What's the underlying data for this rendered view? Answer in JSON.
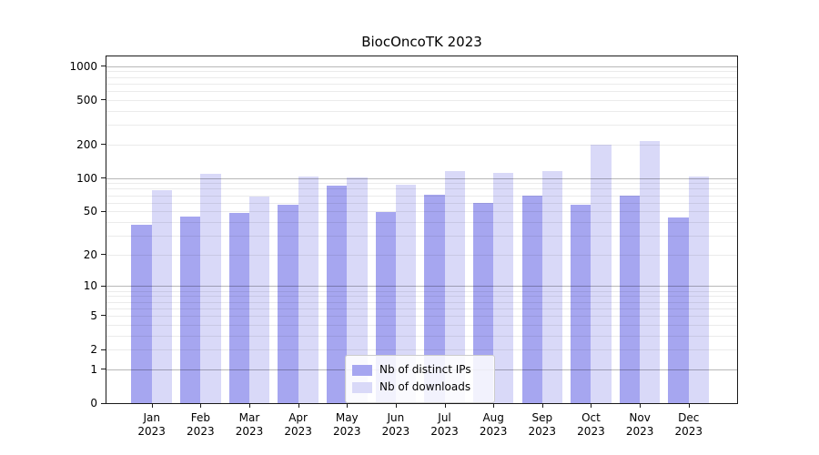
{
  "title": "BiocOncoTK 2023",
  "legend": {
    "items": [
      {
        "label": "Nb of distinct IPs",
        "color": "#a6a6f0"
      },
      {
        "label": "Nb of downloads",
        "color": "#d9d9f8"
      }
    ]
  },
  "chart_data": {
    "type": "bar",
    "title": "BiocOncoTK 2023",
    "categories": [
      "Jan 2023",
      "Feb 2023",
      "Mar 2023",
      "Apr 2023",
      "May 2023",
      "Jun 2023",
      "Jul 2023",
      "Aug 2023",
      "Sep 2023",
      "Oct 2023",
      "Nov 2023",
      "Dec 2023"
    ],
    "series": [
      {
        "name": "Nb of distinct IPs",
        "color": "#a6a6f0",
        "values": [
          38,
          45,
          48,
          57,
          86,
          49,
          71,
          60,
          70,
          57,
          70,
          44
        ]
      },
      {
        "name": "Nb of downloads",
        "color": "#d9d9f8",
        "values": [
          78,
          110,
          68,
          103,
          101,
          87,
          116,
          112,
          115,
          200,
          214,
          104
        ]
      }
    ],
    "xlabel": "",
    "ylabel": "",
    "yscale": "log1p",
    "yticks": [
      0,
      1,
      2,
      5,
      10,
      20,
      50,
      100,
      200,
      500,
      1000
    ],
    "ylim": [
      0,
      1244
    ],
    "grid": true,
    "grid_major_at": [
      1,
      10,
      100,
      1000
    ],
    "legend_position": "lower center",
    "background": "#ffffff"
  }
}
